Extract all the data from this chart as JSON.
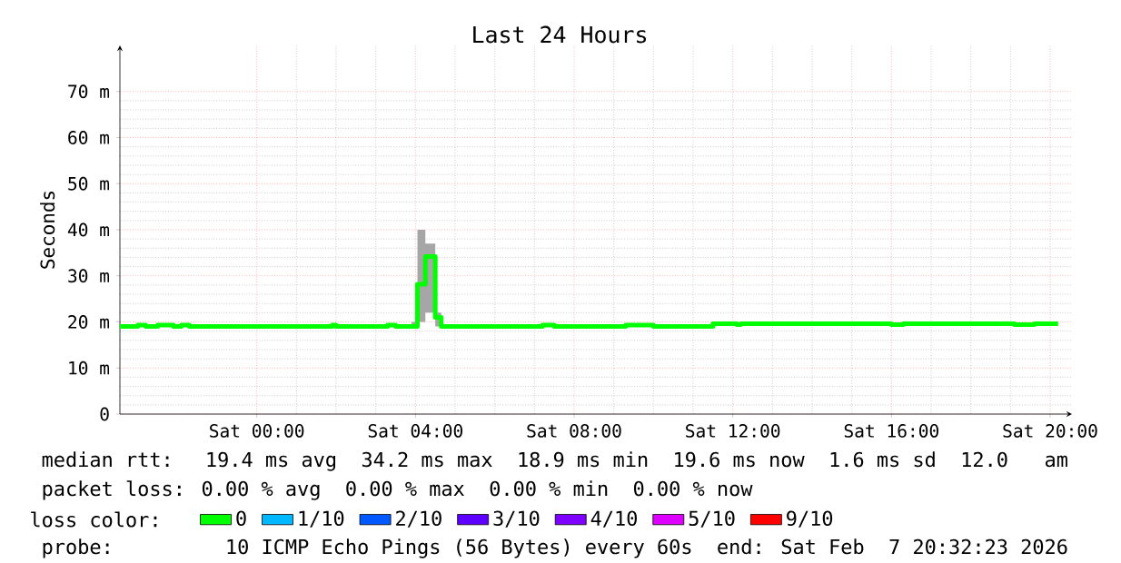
{
  "chart_data": {
    "type": "step",
    "title": "Last 24 Hours",
    "ylabel": "Seconds",
    "xlim": [
      "2026-02-06T20:33",
      "2026-02-07T20:33"
    ],
    "ylim": [
      0,
      80
    ],
    "xticks": [
      {
        "value": "2026-02-07T00:00",
        "label": "Sat 00:00"
      },
      {
        "value": "2026-02-07T04:00",
        "label": "Sat 04:00"
      },
      {
        "value": "2026-02-07T08:00",
        "label": "Sat 08:00"
      },
      {
        "value": "2026-02-07T12:00",
        "label": "Sat 12:00"
      },
      {
        "value": "2026-02-07T16:00",
        "label": "Sat 16:00"
      },
      {
        "value": "2026-02-07T20:00",
        "label": "Sat 20:00"
      }
    ],
    "yticks": [
      0,
      {
        "value": 10,
        "label": "10 m"
      },
      {
        "value": 20,
        "label": "20 m"
      },
      {
        "value": 30,
        "label": "30 m"
      },
      {
        "value": 40,
        "label": "40 m"
      },
      {
        "value": 50,
        "label": "50 m"
      },
      {
        "value": 60,
        "label": "60 m"
      },
      {
        "value": 70,
        "label": "70 m"
      }
    ],
    "grid": true,
    "legend": "bottom",
    "legend_title": "loss color:",
    "x": [
      "2026-02-06T20:33",
      "2026-02-06T21:00",
      "2026-02-06T21:12",
      "2026-02-06T21:30",
      "2026-02-06T21:54",
      "2026-02-06T22:06",
      "2026-02-06T22:18",
      "2026-02-07T01:48",
      "2026-02-07T01:54",
      "2026-02-07T02:00",
      "2026-02-07T03:12",
      "2026-02-07T03:18",
      "2026-02-07T03:30",
      "2026-02-07T03:54",
      "2026-02-07T04:03",
      "2026-02-07T04:15",
      "2026-02-07T04:30",
      "2026-02-07T04:39",
      "2026-02-07T07:06",
      "2026-02-07T07:12",
      "2026-02-07T07:30",
      "2026-02-07T09:12",
      "2026-02-07T09:18",
      "2026-02-07T10:00",
      "2026-02-07T11:24",
      "2026-02-07T11:30",
      "2026-02-07T12:00",
      "2026-02-07T12:06",
      "2026-02-07T12:12",
      "2026-02-07T15:54",
      "2026-02-07T16:00",
      "2026-02-07T16:18",
      "2026-02-07T19:00",
      "2026-02-07T19:06",
      "2026-02-07T19:36",
      "2026-02-07T20:12"
    ],
    "series": [
      {
        "name": "0",
        "color": "#00ff00",
        "values": [
          19.0,
          19.3,
          19.0,
          19.3,
          19.0,
          19.3,
          19.0,
          19.0,
          19.3,
          19.0,
          19.0,
          19.3,
          19.0,
          19.0,
          28.2,
          34.2,
          21.0,
          19.0,
          19.0,
          19.3,
          19.0,
          19.0,
          19.3,
          19.0,
          19.0,
          19.6,
          19.6,
          19.4,
          19.6,
          19.6,
          19.4,
          19.6,
          19.6,
          19.4,
          19.6,
          19.6
        ],
        "lower": [
          19.0,
          19.3,
          19.0,
          19.3,
          19.0,
          19.3,
          19.0,
          19.0,
          19.3,
          19.0,
          19.0,
          19.3,
          19.0,
          19.0,
          20.0,
          22.0,
          19.0,
          19.0,
          19.0,
          19.3,
          19.0,
          19.0,
          19.3,
          19.0,
          19.0,
          19.6,
          19.6,
          19.4,
          19.6,
          19.6,
          19.4,
          19.6,
          19.6,
          19.4,
          19.6,
          19.6
        ],
        "upper": [
          19.0,
          19.3,
          19.0,
          19.3,
          19.0,
          19.3,
          19.0,
          19.0,
          19.3,
          19.0,
          19.0,
          19.3,
          19.0,
          20.0,
          40.0,
          37.0,
          22.0,
          19.0,
          19.0,
          19.3,
          19.0,
          19.0,
          19.3,
          19.0,
          19.0,
          19.6,
          19.6,
          19.4,
          19.6,
          19.6,
          19.4,
          19.6,
          19.6,
          19.4,
          19.6,
          19.6
        ]
      },
      {
        "name": "1/10",
        "color": "#00b8ff",
        "values": [
          null,
          null,
          null,
          null,
          null,
          null,
          null,
          null,
          null,
          null,
          null,
          null,
          null,
          null,
          null,
          null,
          null,
          null,
          null,
          null,
          null,
          null,
          null,
          null,
          null,
          null,
          null,
          null,
          null,
          null,
          null,
          null,
          null,
          null,
          null,
          null
        ]
      },
      {
        "name": "2/10",
        "color": "#0059ff",
        "values": [
          null,
          null,
          null,
          null,
          null,
          null,
          null,
          null,
          null,
          null,
          null,
          null,
          null,
          null,
          null,
          null,
          null,
          null,
          null,
          null,
          null,
          null,
          null,
          null,
          null,
          null,
          null,
          null,
          null,
          null,
          null,
          null,
          null,
          null,
          null,
          null
        ]
      },
      {
        "name": "3/10",
        "color": "#5e00ff",
        "values": [
          null,
          null,
          null,
          null,
          null,
          null,
          null,
          null,
          null,
          null,
          null,
          null,
          null,
          null,
          null,
          null,
          null,
          null,
          null,
          null,
          null,
          null,
          null,
          null,
          null,
          null,
          null,
          null,
          null,
          null,
          null,
          null,
          null,
          null,
          null,
          null
        ]
      },
      {
        "name": "4/10",
        "color": "#7e00ff",
        "values": [
          null,
          null,
          null,
          null,
          null,
          null,
          null,
          null,
          null,
          null,
          null,
          null,
          null,
          null,
          null,
          null,
          null,
          null,
          null,
          null,
          null,
          null,
          null,
          null,
          null,
          null,
          null,
          null,
          null,
          null,
          null,
          null,
          null,
          null,
          null,
          null
        ]
      },
      {
        "name": "5/10",
        "color": "#dd00ff",
        "values": [
          null,
          null,
          null,
          null,
          null,
          null,
          null,
          null,
          null,
          null,
          null,
          null,
          null,
          null,
          null,
          null,
          null,
          null,
          null,
          null,
          null,
          null,
          null,
          null,
          null,
          null,
          null,
          null,
          null,
          null,
          null,
          null,
          null,
          null,
          null,
          null
        ]
      },
      {
        "name": "9/10",
        "color": "#ff0000",
        "values": [
          null,
          null,
          null,
          null,
          null,
          null,
          null,
          null,
          null,
          null,
          null,
          null,
          null,
          null,
          null,
          null,
          null,
          null,
          null,
          null,
          null,
          null,
          null,
          null,
          null,
          null,
          null,
          null,
          null,
          null,
          null,
          null,
          null,
          null,
          null,
          null
        ]
      }
    ],
    "annotations": [
      "median rtt:  19.4 ms avg  34.2 ms max  18.9 ms min  19.6 ms now  1.6 ms sd  12.0   am",
      "packet loss: 0.00 % avg  0.00 % max  0.00 % min  0.00 % now",
      "probe:       10 ICMP Echo Pings (56 Bytes) every 60s  end: Sat Feb  7 20:32:23 2026"
    ]
  }
}
